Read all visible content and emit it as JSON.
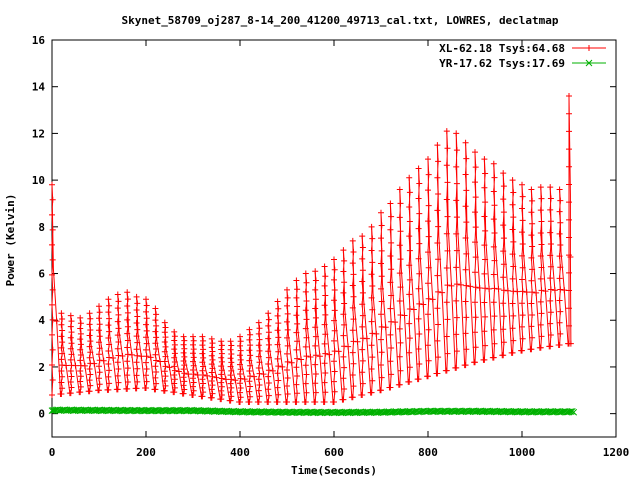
{
  "chart_data": {
    "type": "line",
    "title": "Skynet_58709_oj287_8-14_200_41200_49713_cal.txt, LOWRES, declatmap",
    "xlabel": "Time(Seconds)",
    "ylabel": "Power (Kelvin)",
    "xlim": [
      0,
      1200
    ],
    "ylim": [
      -1,
      16
    ],
    "x_ticks": [
      0,
      200,
      400,
      600,
      800,
      1000,
      1200
    ],
    "y_ticks": [
      0,
      2,
      4,
      6,
      8,
      10,
      12,
      14,
      16
    ],
    "grid": false,
    "legend_position": "top-right",
    "series": [
      {
        "name": "XL-62.18 Tsys:64.68",
        "color": "#ff0000",
        "marker": "plus",
        "scan_peaks": [
          [
            0,
            9.8
          ],
          [
            20,
            4.3
          ],
          [
            40,
            4.2
          ],
          [
            60,
            4.1
          ],
          [
            80,
            4.3
          ],
          [
            100,
            4.6
          ],
          [
            120,
            4.9
          ],
          [
            140,
            5.1
          ],
          [
            160,
            5.2
          ],
          [
            180,
            5.0
          ],
          [
            200,
            4.9
          ],
          [
            220,
            4.5
          ],
          [
            240,
            3.9
          ],
          [
            260,
            3.5
          ],
          [
            280,
            3.3
          ],
          [
            300,
            3.3
          ],
          [
            320,
            3.3
          ],
          [
            340,
            3.2
          ],
          [
            360,
            3.1
          ],
          [
            380,
            3.1
          ],
          [
            400,
            3.3
          ],
          [
            420,
            3.6
          ],
          [
            440,
            3.9
          ],
          [
            460,
            4.3
          ],
          [
            480,
            4.8
          ],
          [
            500,
            5.3
          ],
          [
            520,
            5.7
          ],
          [
            540,
            6.0
          ],
          [
            560,
            6.1
          ],
          [
            580,
            6.3
          ],
          [
            600,
            6.6
          ],
          [
            620,
            7.0
          ],
          [
            640,
            7.4
          ],
          [
            660,
            7.6
          ],
          [
            680,
            8.0
          ],
          [
            700,
            8.6
          ],
          [
            720,
            9.0
          ],
          [
            740,
            9.6
          ],
          [
            760,
            10.1
          ],
          [
            780,
            10.5
          ],
          [
            800,
            10.9
          ],
          [
            820,
            11.5
          ],
          [
            840,
            12.1
          ],
          [
            860,
            12.0
          ],
          [
            880,
            11.6
          ],
          [
            900,
            11.2
          ],
          [
            920,
            10.9
          ],
          [
            940,
            10.7
          ],
          [
            960,
            10.3
          ],
          [
            980,
            10.0
          ],
          [
            1000,
            9.8
          ],
          [
            1020,
            9.6
          ],
          [
            1040,
            9.7
          ],
          [
            1060,
            9.7
          ],
          [
            1080,
            9.6
          ],
          [
            1100,
            13.6
          ]
        ],
        "scan_baseline": [
          [
            0,
            0.8
          ],
          [
            100,
            1.0
          ],
          [
            200,
            1.1
          ],
          [
            300,
            0.8
          ],
          [
            400,
            0.5
          ],
          [
            500,
            0.5
          ],
          [
            600,
            0.5
          ],
          [
            700,
            1.0
          ],
          [
            800,
            1.6
          ],
          [
            900,
            2.2
          ],
          [
            1000,
            2.7
          ],
          [
            1100,
            3.0
          ]
        ]
      },
      {
        "name": "YR-17.62 Tsys:17.69",
        "color": "#00b000",
        "marker": "cross",
        "points": [
          [
            0,
            0.15
          ],
          [
            100,
            0.14
          ],
          [
            200,
            0.13
          ],
          [
            300,
            0.13
          ],
          [
            400,
            0.08
          ],
          [
            500,
            0.06
          ],
          [
            600,
            0.05
          ],
          [
            700,
            0.06
          ],
          [
            800,
            0.1
          ],
          [
            900,
            0.1
          ],
          [
            1000,
            0.08
          ],
          [
            1100,
            0.08
          ]
        ]
      }
    ]
  }
}
